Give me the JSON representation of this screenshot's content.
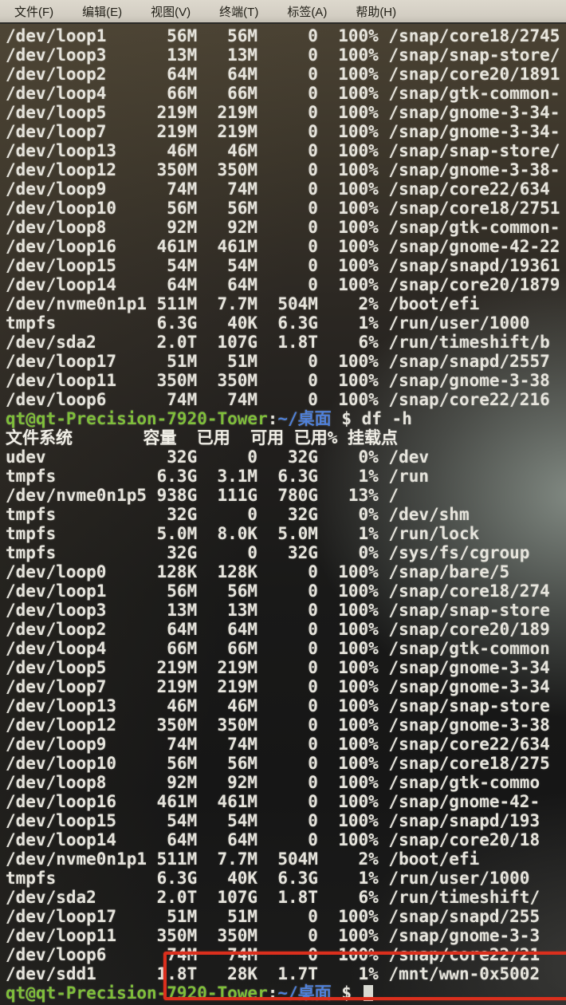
{
  "menu": {
    "items": [
      {
        "label": "文件(F)"
      },
      {
        "label": "编辑(E)"
      },
      {
        "label": "视图(V)"
      },
      {
        "label": "终端(T)"
      },
      {
        "label": "标签(A)"
      },
      {
        "label": "帮助(H)"
      }
    ]
  },
  "colors": {
    "prompt_green": "#7fbe3a",
    "path_blue": "#4f80d8",
    "annotation_red": "#db2f1d",
    "menu_bg": "#d5d1c6",
    "terminal_fg": "#e6e4dc"
  },
  "annotation": {
    "type": "red-rectangle-highlight",
    "highlights": "/dev/sdd1 row: 1.8T 28K 1.7T 1% /mnt/wwn-0x5002"
  },
  "terminal": {
    "command": "df -h",
    "header_columns": [
      "文件系统",
      "容量",
      "已用",
      "可用",
      "已用%",
      "挂载点"
    ],
    "lines": [
      {
        "kind": "row",
        "cols": [
          "/dev/loop1",
          "56M",
          "56M",
          "0",
          "100%",
          "/snap/core18/2745"
        ]
      },
      {
        "kind": "row",
        "cols": [
          "/dev/loop3",
          "13M",
          "13M",
          "0",
          "100%",
          "/snap/snap-store/"
        ]
      },
      {
        "kind": "row",
        "cols": [
          "/dev/loop2",
          "64M",
          "64M",
          "0",
          "100%",
          "/snap/core20/1891"
        ]
      },
      {
        "kind": "row",
        "cols": [
          "/dev/loop4",
          "66M",
          "66M",
          "0",
          "100%",
          "/snap/gtk-common-"
        ]
      },
      {
        "kind": "row",
        "cols": [
          "/dev/loop5",
          "219M",
          "219M",
          "0",
          "100%",
          "/snap/gnome-3-34-"
        ]
      },
      {
        "kind": "row",
        "cols": [
          "/dev/loop7",
          "219M",
          "219M",
          "0",
          "100%",
          "/snap/gnome-3-34-"
        ]
      },
      {
        "kind": "row",
        "cols": [
          "/dev/loop13",
          "46M",
          "46M",
          "0",
          "100%",
          "/snap/snap-store/"
        ]
      },
      {
        "kind": "row",
        "cols": [
          "/dev/loop12",
          "350M",
          "350M",
          "0",
          "100%",
          "/snap/gnome-3-38-"
        ]
      },
      {
        "kind": "row",
        "cols": [
          "/dev/loop9",
          "74M",
          "74M",
          "0",
          "100%",
          "/snap/core22/634"
        ]
      },
      {
        "kind": "row",
        "cols": [
          "/dev/loop10",
          "56M",
          "56M",
          "0",
          "100%",
          "/snap/core18/2751"
        ]
      },
      {
        "kind": "row",
        "cols": [
          "/dev/loop8",
          "92M",
          "92M",
          "0",
          "100%",
          "/snap/gtk-common-"
        ]
      },
      {
        "kind": "row",
        "cols": [
          "/dev/loop16",
          "461M",
          "461M",
          "0",
          "100%",
          "/snap/gnome-42-22"
        ]
      },
      {
        "kind": "row",
        "cols": [
          "/dev/loop15",
          "54M",
          "54M",
          "0",
          "100%",
          "/snap/snapd/19361"
        ]
      },
      {
        "kind": "row",
        "cols": [
          "/dev/loop14",
          "64M",
          "64M",
          "0",
          "100%",
          "/snap/core20/1879"
        ]
      },
      {
        "kind": "row",
        "cols": [
          "/dev/nvme0n1p1",
          "511M",
          "7.7M",
          "504M",
          "2%",
          "/boot/efi"
        ]
      },
      {
        "kind": "row",
        "cols": [
          "tmpfs",
          "6.3G",
          "40K",
          "6.3G",
          "1%",
          "/run/user/1000"
        ]
      },
      {
        "kind": "row",
        "cols": [
          "/dev/sda2",
          "2.0T",
          "107G",
          "1.8T",
          "6%",
          "/run/timeshift/b"
        ]
      },
      {
        "kind": "row",
        "cols": [
          "/dev/loop17",
          "51M",
          "51M",
          "0",
          "100%",
          "/snap/snapd/2557"
        ]
      },
      {
        "kind": "row",
        "cols": [
          "/dev/loop11",
          "350M",
          "350M",
          "0",
          "100%",
          "/snap/gnome-3-38"
        ]
      },
      {
        "kind": "row",
        "cols": [
          "/dev/loop6",
          "74M",
          "74M",
          "0",
          "100%",
          "/snap/core22/216"
        ]
      },
      {
        "kind": "prompt",
        "parts": [
          {
            "t": "qt@qt-Precision-7920-Tower",
            "c": "green"
          },
          {
            "t": ":",
            "c": "plain"
          },
          {
            "t": "~/桌面",
            "c": "blue"
          },
          {
            "t": " $ df -h",
            "c": "plain"
          }
        ],
        "cursor": false
      },
      {
        "kind": "raw",
        "text": "文件系统       容量  已用  可用 已用% 挂载点"
      },
      {
        "kind": "row",
        "cols": [
          "udev",
          "32G",
          "0",
          "32G",
          "0%",
          "/dev"
        ]
      },
      {
        "kind": "row",
        "cols": [
          "tmpfs",
          "6.3G",
          "3.1M",
          "6.3G",
          "1%",
          "/run"
        ]
      },
      {
        "kind": "row",
        "cols": [
          "/dev/nvme0n1p5",
          "938G",
          "111G",
          "780G",
          "13%",
          "/"
        ]
      },
      {
        "kind": "row",
        "cols": [
          "tmpfs",
          "32G",
          "0",
          "32G",
          "0%",
          "/dev/shm"
        ]
      },
      {
        "kind": "row",
        "cols": [
          "tmpfs",
          "5.0M",
          "8.0K",
          "5.0M",
          "1%",
          "/run/lock"
        ]
      },
      {
        "kind": "row",
        "cols": [
          "tmpfs",
          "32G",
          "0",
          "32G",
          "0%",
          "/sys/fs/cgroup"
        ]
      },
      {
        "kind": "row",
        "cols": [
          "/dev/loop0",
          "128K",
          "128K",
          "0",
          "100%",
          "/snap/bare/5"
        ]
      },
      {
        "kind": "row",
        "cols": [
          "/dev/loop1",
          "56M",
          "56M",
          "0",
          "100%",
          "/snap/core18/274"
        ]
      },
      {
        "kind": "row",
        "cols": [
          "/dev/loop3",
          "13M",
          "13M",
          "0",
          "100%",
          "/snap/snap-store"
        ]
      },
      {
        "kind": "row",
        "cols": [
          "/dev/loop2",
          "64M",
          "64M",
          "0",
          "100%",
          "/snap/core20/189"
        ]
      },
      {
        "kind": "row",
        "cols": [
          "/dev/loop4",
          "66M",
          "66M",
          "0",
          "100%",
          "/snap/gtk-common"
        ]
      },
      {
        "kind": "row",
        "cols": [
          "/dev/loop5",
          "219M",
          "219M",
          "0",
          "100%",
          "/snap/gnome-3-34"
        ]
      },
      {
        "kind": "row",
        "cols": [
          "/dev/loop7",
          "219M",
          "219M",
          "0",
          "100%",
          "/snap/gnome-3-34"
        ]
      },
      {
        "kind": "row",
        "cols": [
          "/dev/loop13",
          "46M",
          "46M",
          "0",
          "100%",
          "/snap/snap-store"
        ]
      },
      {
        "kind": "row",
        "cols": [
          "/dev/loop12",
          "350M",
          "350M",
          "0",
          "100%",
          "/snap/gnome-3-38"
        ]
      },
      {
        "kind": "row",
        "cols": [
          "/dev/loop9",
          "74M",
          "74M",
          "0",
          "100%",
          "/snap/core22/634"
        ]
      },
      {
        "kind": "row",
        "cols": [
          "/dev/loop10",
          "56M",
          "56M",
          "0",
          "100%",
          "/snap/core18/275"
        ]
      },
      {
        "kind": "row",
        "cols": [
          "/dev/loop8",
          "92M",
          "92M",
          "0",
          "100%",
          "/snap/gtk-commo"
        ]
      },
      {
        "kind": "row",
        "cols": [
          "/dev/loop16",
          "461M",
          "461M",
          "0",
          "100%",
          "/snap/gnome-42-"
        ]
      },
      {
        "kind": "row",
        "cols": [
          "/dev/loop15",
          "54M",
          "54M",
          "0",
          "100%",
          "/snap/snapd/193"
        ]
      },
      {
        "kind": "row",
        "cols": [
          "/dev/loop14",
          "64M",
          "64M",
          "0",
          "100%",
          "/snap/core20/18"
        ]
      },
      {
        "kind": "row",
        "cols": [
          "/dev/nvme0n1p1",
          "511M",
          "7.7M",
          "504M",
          "2%",
          "/boot/efi"
        ]
      },
      {
        "kind": "row",
        "cols": [
          "tmpfs",
          "6.3G",
          "40K",
          "6.3G",
          "1%",
          "/run/user/1000"
        ]
      },
      {
        "kind": "row",
        "cols": [
          "/dev/sda2",
          "2.0T",
          "107G",
          "1.8T",
          "6%",
          "/run/timeshift/"
        ]
      },
      {
        "kind": "row",
        "cols": [
          "/dev/loop17",
          "51M",
          "51M",
          "0",
          "100%",
          "/snap/snapd/255"
        ]
      },
      {
        "kind": "row",
        "cols": [
          "/dev/loop11",
          "350M",
          "350M",
          "0",
          "100%",
          "/snap/gnome-3-3"
        ]
      },
      {
        "kind": "row",
        "cols": [
          "/dev/loop6",
          "74M",
          "74M",
          "0",
          "100%",
          "/snap/core22/21"
        ]
      },
      {
        "kind": "row",
        "cols": [
          "/dev/sdd1",
          "1.8T",
          "28K",
          "1.7T",
          "1%",
          "/mnt/wwn-0x5002"
        ]
      },
      {
        "kind": "prompt",
        "parts": [
          {
            "t": "qt@qt-Precision-7920-Tower",
            "c": "green"
          },
          {
            "t": ":",
            "c": "plain"
          },
          {
            "t": "~/桌面",
            "c": "blue"
          },
          {
            "t": " $ ",
            "c": "plain"
          }
        ],
        "cursor": true
      }
    ]
  }
}
